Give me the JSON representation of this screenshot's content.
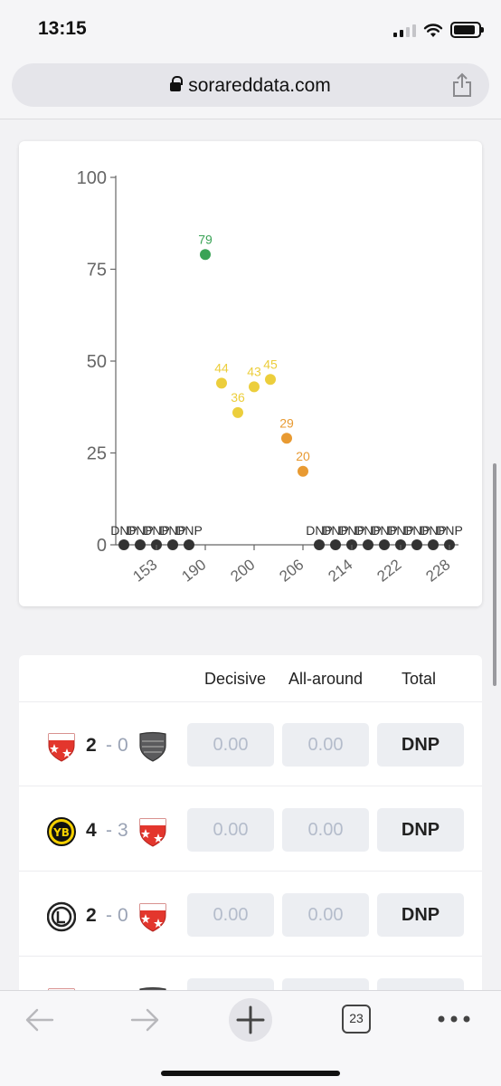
{
  "status_bar": {
    "time": "13:15"
  },
  "address_bar": {
    "url": "sorareddata.com"
  },
  "chart_data": {
    "type": "scatter",
    "y_ticks": [
      "0",
      "25",
      "50",
      "75",
      "100"
    ],
    "ylim": [
      0,
      100
    ],
    "x_ticks": [
      "153",
      "190",
      "200",
      "206",
      "214",
      "222",
      "228"
    ],
    "points": [
      {
        "label": "DNP",
        "value": 0,
        "color": "#333333"
      },
      {
        "label": "DNP",
        "value": 0,
        "color": "#333333"
      },
      {
        "label": "DNP",
        "value": 0,
        "color": "#333333"
      },
      {
        "label": "DNP",
        "value": 0,
        "color": "#333333"
      },
      {
        "label": "DNP",
        "value": 0,
        "color": "#333333"
      },
      {
        "label": "79",
        "value": 79,
        "color": "#3aa356"
      },
      {
        "label": "44",
        "value": 44,
        "color": "#ecce3c"
      },
      {
        "label": "36",
        "value": 36,
        "color": "#ecce3c"
      },
      {
        "label": "43",
        "value": 43,
        "color": "#ecce3c"
      },
      {
        "label": "45",
        "value": 45,
        "color": "#ecce3c"
      },
      {
        "label": "29",
        "value": 29,
        "color": "#e89a32"
      },
      {
        "label": "20",
        "value": 20,
        "color": "#e89a32"
      },
      {
        "label": "DNP",
        "value": 0,
        "color": "#333333"
      },
      {
        "label": "DNP",
        "value": 0,
        "color": "#333333"
      },
      {
        "label": "DNP",
        "value": 0,
        "color": "#333333"
      },
      {
        "label": "DNP",
        "value": 0,
        "color": "#333333"
      },
      {
        "label": "DNP",
        "value": 0,
        "color": "#333333"
      },
      {
        "label": "DNP",
        "value": 0,
        "color": "#333333"
      },
      {
        "label": "DNP",
        "value": 0,
        "color": "#333333"
      },
      {
        "label": "DNP",
        "value": 0,
        "color": "#333333"
      },
      {
        "label": "DNP",
        "value": 0,
        "color": "#333333"
      }
    ]
  },
  "table": {
    "headers": {
      "decisive": "Decisive",
      "all_around": "All-around",
      "total": "Total"
    },
    "rows": [
      {
        "home_badge": "fc-sion-badge",
        "away_badge": "grey-shield-badge",
        "home_score": "2",
        "dash": "-",
        "away_score": "0",
        "decisive": "0.00",
        "all_around": "0.00",
        "total": "DNP"
      },
      {
        "home_badge": "young-boys-badge",
        "away_badge": "fc-sion-badge",
        "home_score": "4",
        "dash": "-",
        "away_score": "3",
        "decisive": "0.00",
        "all_around": "0.00",
        "total": "DNP"
      },
      {
        "home_badge": "lugano-badge",
        "away_badge": "fc-sion-badge",
        "home_score": "2",
        "dash": "-",
        "away_score": "0",
        "decisive": "0.00",
        "all_around": "0.00",
        "total": "DNP"
      }
    ]
  },
  "toolbar": {
    "tab_count": "23"
  },
  "icons": {
    "lock": "lock-icon",
    "share": "share-icon",
    "back": "back-arrow-icon",
    "forward": "forward-arrow-icon",
    "new_tab": "plus-icon",
    "tabs": "tabs-icon",
    "more": "more-icon"
  }
}
